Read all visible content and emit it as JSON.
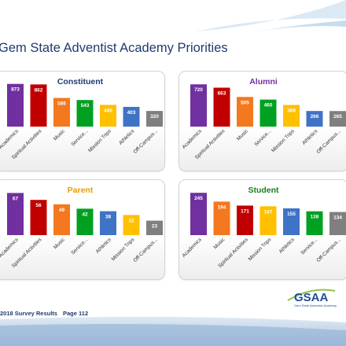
{
  "title": "Gem State Adventist Academy Priorities",
  "footer": {
    "survey": "2018 Survey Results",
    "page": "Page 112"
  },
  "logo": {
    "text": "GSAA",
    "subtitle": "Gem State Adventist Academy"
  },
  "colors": {
    "purple": "#7030a0",
    "red": "#c00000",
    "orange": "#f4781e",
    "green": "#00a020",
    "yellow": "#ffc000",
    "blue": "#3f73c6",
    "gray": "#7f7f7f"
  },
  "chart_data": [
    {
      "type": "bar",
      "title": "Constituent",
      "title_color": "#1f3b6e",
      "categories": [
        "Academics",
        "Spiritual Activities",
        "Music",
        "Service...",
        "Mission Trips",
        "Athletics",
        "Off-Campus..."
      ],
      "values": [
        873,
        862,
        586,
        543,
        445,
        403,
        320
      ],
      "colors": [
        "purple",
        "red",
        "orange",
        "green",
        "yellow",
        "blue",
        "gray"
      ],
      "ylim": [
        0,
        900
      ],
      "grid": false
    },
    {
      "type": "bar",
      "title": "Alumni",
      "title_color": "#7030a0",
      "categories": [
        "Academics",
        "Spiritual Activities",
        "Music",
        "Service...",
        "Mission Trips",
        "Athletics",
        "Off-Campus..."
      ],
      "values": [
        720,
        663,
        505,
        460,
        369,
        266,
        265
      ],
      "colors": [
        "purple",
        "red",
        "orange",
        "green",
        "yellow",
        "blue",
        "gray"
      ],
      "ylim": [
        0,
        750
      ],
      "grid": false
    },
    {
      "type": "bar",
      "title": "Parent",
      "title_color": "#e8a000",
      "categories": [
        "Academics",
        "Spiritual Activities",
        "Music",
        "Service...",
        "Athletics",
        "Mission Trips",
        "Off-Campus..."
      ],
      "values": [
        67,
        56,
        49,
        42,
        38,
        32,
        23
      ],
      "colors": [
        "purple",
        "red",
        "orange",
        "green",
        "blue",
        "yellow",
        "gray"
      ],
      "ylim": [
        0,
        70
      ],
      "grid": false
    },
    {
      "type": "bar",
      "title": "Student",
      "title_color": "#1f7a1f",
      "categories": [
        "Academics",
        "Music",
        "Spiritual Activities",
        "Mission Trips",
        "Athletics",
        "Service...",
        "Off-Campus..."
      ],
      "values": [
        245,
        194,
        171,
        167,
        155,
        138,
        134
      ],
      "colors": [
        "purple",
        "orange",
        "red",
        "yellow",
        "blue",
        "green",
        "gray"
      ],
      "ylim": [
        0,
        255
      ],
      "grid": false
    }
  ]
}
